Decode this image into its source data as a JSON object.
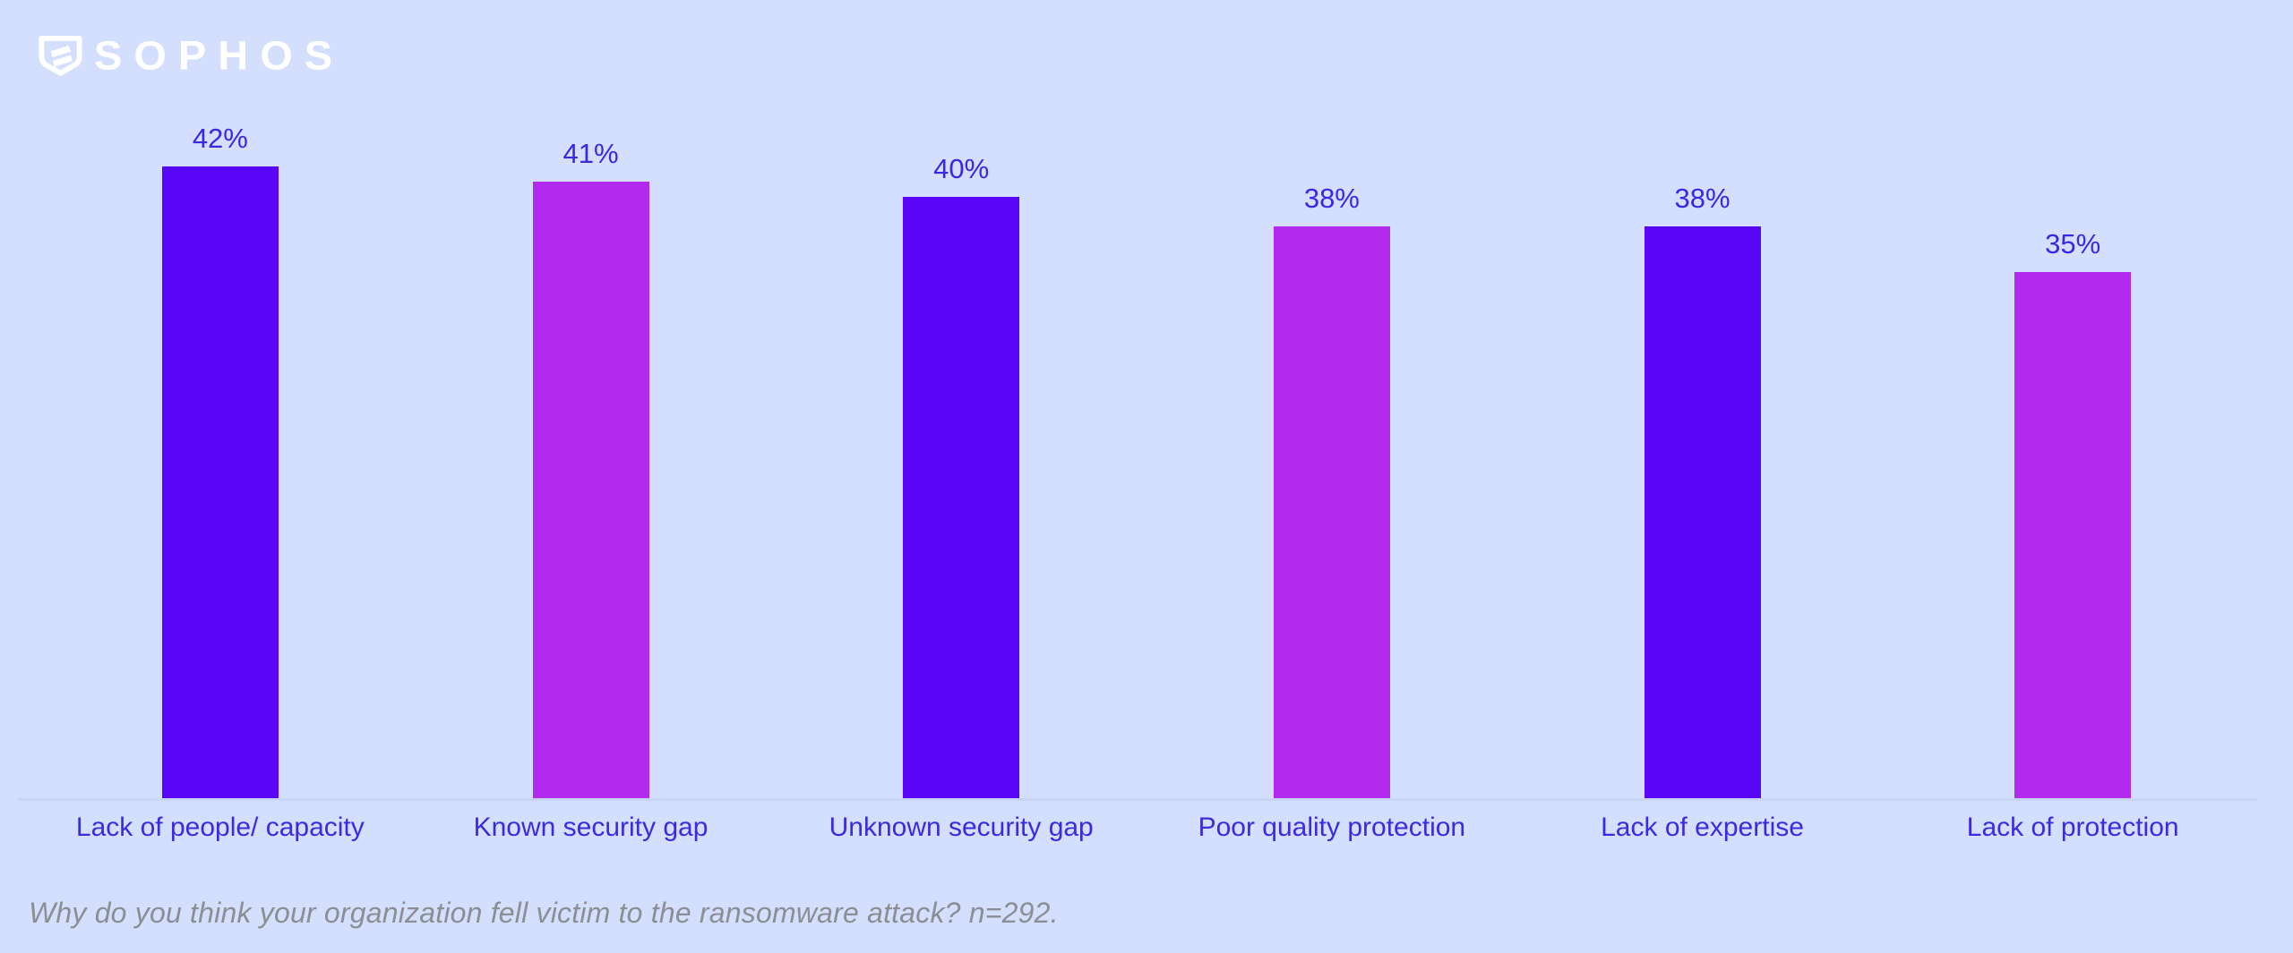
{
  "brand": {
    "wordmark": "SOPHOS",
    "logo_color": "#ffffff"
  },
  "chart_data": {
    "type": "bar",
    "title": "",
    "xlabel": "",
    "ylabel": "",
    "categories": [
      "Lack of people/ capacity",
      "Known security gap",
      "Unknown security gap",
      "Poor quality protection",
      "Lack of expertise",
      "Lack of protection"
    ],
    "values": [
      42,
      41,
      40,
      38,
      38,
      35
    ],
    "value_labels": [
      "42%",
      "41%",
      "40%",
      "38%",
      "38%",
      "35%"
    ],
    "bar_colors": [
      "#5905f6",
      "#b22bef",
      "#5905f6",
      "#b22bef",
      "#5905f6",
      "#b22bef"
    ],
    "ylim": [
      0,
      45
    ],
    "grid": false,
    "legend": "none",
    "value_label_position": "above-bar",
    "baseline_axis": true
  },
  "caption": {
    "text": "Why do you think your organization fell victim to the ransomware attack? n=292."
  },
  "colors": {
    "background": "#d3dffc",
    "bar_violet": "#5905f6",
    "bar_magenta": "#b22bef",
    "label_blue": "#3a2be0",
    "axis_line": "#c7d5f4",
    "caption_gray": "#8b8e93",
    "logo_white": "#ffffff"
  }
}
